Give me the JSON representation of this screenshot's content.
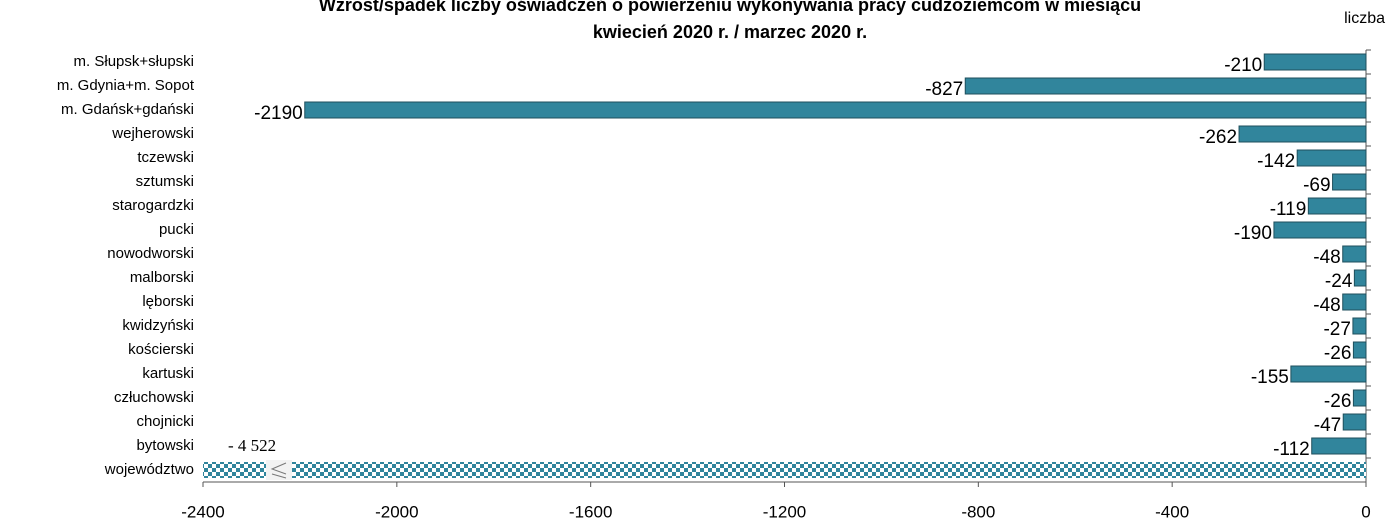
{
  "chart_data": {
    "type": "barh",
    "title": [
      "Wzrost/spadek liczby oświadczeń o powierzeniu wykonywania pracy cudzoziemcom w miesiącu",
      "kwiecień 2020 r. / marzec 2020 r."
    ],
    "unit_label": "liczba",
    "categories": [
      "m. Słupsk+słupski",
      "m. Gdynia+m. Sopot",
      "m. Gdańsk+gdański",
      "wejherowski",
      "tczewski",
      "sztumski",
      "starogardzki",
      "pucki",
      "nowodworski",
      "malborski",
      "lęborski",
      "kwidzyński",
      "kościerski",
      "kartuski",
      "człuchowski",
      "chojnicki",
      "bytowski",
      "województwo"
    ],
    "values": [
      -210,
      -827,
      -2190,
      -262,
      -142,
      -69,
      -119,
      -190,
      -48,
      -24,
      -48,
      -27,
      -26,
      -155,
      -26,
      -47,
      -112,
      -4522
    ],
    "value_labels": [
      "-210",
      "-827",
      "-2190",
      "-262",
      "-142",
      "-69",
      "-119",
      "-190",
      "-48",
      "-24",
      "-48",
      "-27",
      "-26",
      "-155",
      "-26",
      "-47",
      "-112",
      "- 4 522"
    ],
    "color": "#31859c",
    "xlim": [
      -2400,
      0
    ],
    "xticks": [
      -2400,
      -2000,
      -1600,
      -1200,
      -800,
      -400,
      0
    ]
  }
}
